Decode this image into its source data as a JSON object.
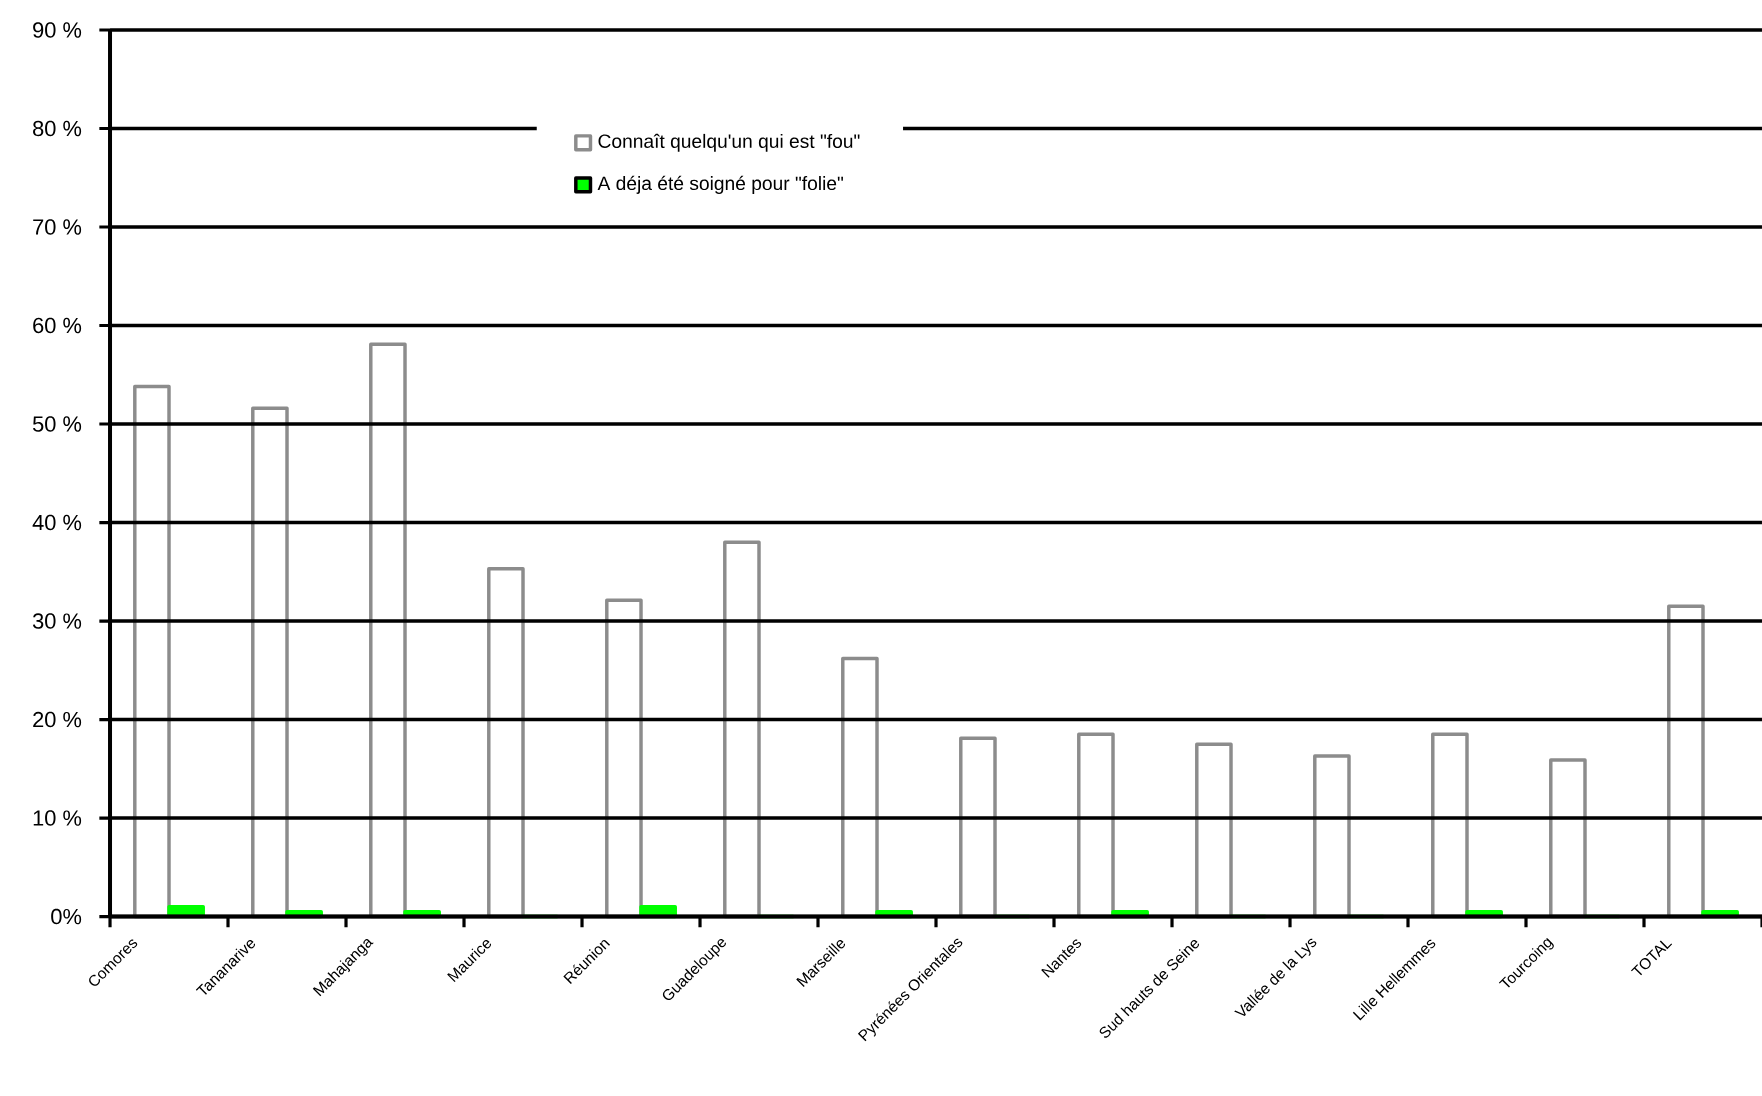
{
  "chart_data": {
    "type": "bar",
    "categories": [
      "Comores",
      "Tananarive",
      "Mahajanga",
      "Maurice",
      "Réunion",
      "Guadeloupe",
      "Marseille",
      "Pyrénées Orientales",
      "Nantes",
      "Sud hauts de Seine",
      "Vallée de la Lys",
      "Lille Hellemmes",
      "Tourcoing",
      "TOTAL"
    ],
    "series": [
      {
        "name": "Connaît quelqu'un qui est \"fou\"",
        "color": "#8c8c8c",
        "values": [
          53.8,
          51.6,
          58.1,
          35.3,
          32.1,
          38.0,
          26.2,
          18.1,
          18.5,
          17.5,
          16.3,
          18.5,
          15.9,
          31.5
        ]
      },
      {
        "name": "A déja été soigné pour \"folie\"",
        "color": "#00ff00",
        "values": [
          1.0,
          0.5,
          0.5,
          0,
          1.0,
          0,
          0.5,
          0,
          0.5,
          0,
          0,
          0.5,
          0,
          0.5
        ]
      }
    ],
    "ylim": [
      0,
      90
    ],
    "yticks": [
      {
        "value": 0,
        "label": "0%"
      },
      {
        "value": 10,
        "label": "10 %"
      },
      {
        "value": 20,
        "label": "20 %"
      },
      {
        "value": 30,
        "label": "30 %"
      },
      {
        "value": 40,
        "label": "40 %"
      },
      {
        "value": 50,
        "label": "50 %"
      },
      {
        "value": 60,
        "label": "60 %"
      },
      {
        "value": 70,
        "label": "70 %"
      },
      {
        "value": 80,
        "label": "80 %"
      },
      {
        "value": 90,
        "label": "90 %"
      }
    ],
    "grid": "y",
    "legend": "top"
  }
}
